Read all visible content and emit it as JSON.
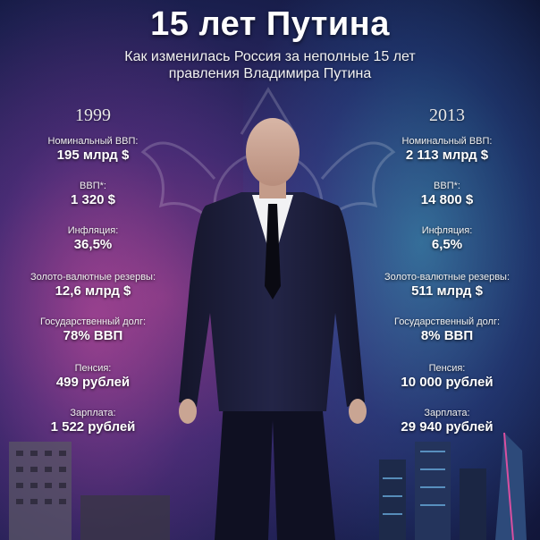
{
  "header": {
    "title": "15 лет Путина",
    "subtitle_line1": "Как изменилась Россия за неполные 15 лет",
    "subtitle_line2": "правления Владимира Путина"
  },
  "left": {
    "year": "1999",
    "stats": [
      {
        "label": "Номинальный ВВП:",
        "value": "195 млрд $"
      },
      {
        "label": "ВВП*:",
        "value": "1 320 $"
      },
      {
        "label": "Инфляция:",
        "value": "36,5%"
      },
      {
        "label": "Золото-валютные резервы:",
        "value": "12,6 млрд $"
      },
      {
        "label": "Государственный долг:",
        "value": "78% ВВП"
      },
      {
        "label": "Пенсия:",
        "value": "499 рублей"
      },
      {
        "label": "Зарплата:",
        "value": "1 522 рублей"
      }
    ]
  },
  "right": {
    "year": "2013",
    "stats": [
      {
        "label": "Номинальный ВВП:",
        "value": "2 113 млрд $"
      },
      {
        "label": "ВВП*:",
        "value": "14 800 $"
      },
      {
        "label": "Инфляция:",
        "value": "6,5%"
      },
      {
        "label": "Золото-валютные резервы:",
        "value": "511 млрд $"
      },
      {
        "label": "Государственный долг:",
        "value": "8% ВВП"
      },
      {
        "label": "Пенсия:",
        "value": "10 000 рублей"
      },
      {
        "label": "Зарплата:",
        "value": "29 940 рублей"
      }
    ]
  }
}
